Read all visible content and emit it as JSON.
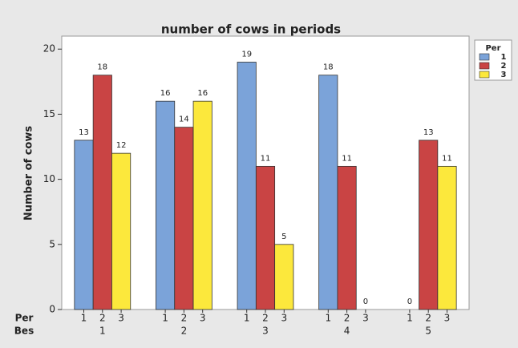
{
  "chart_data": {
    "type": "bar",
    "title": "number of cows in periods",
    "y_label": "Number of cows",
    "x_labels": [
      "Per",
      "Bes"
    ],
    "legend_title": "Per",
    "categories": [
      "1",
      "2",
      "3",
      "4",
      "5"
    ],
    "series": [
      {
        "name": "1",
        "color": "#7ba3d9",
        "values": [
          13,
          16,
          19,
          18,
          0
        ]
      },
      {
        "name": "2",
        "color": "#c94444",
        "values": [
          18,
          14,
          11,
          11,
          13
        ]
      },
      {
        "name": "3",
        "color": "#fce83c",
        "values": [
          12,
          16,
          5,
          0,
          11
        ]
      }
    ],
    "ylim": [
      0,
      21
    ],
    "yticks": [
      0,
      5,
      10,
      15,
      20
    ],
    "legend": "right"
  }
}
